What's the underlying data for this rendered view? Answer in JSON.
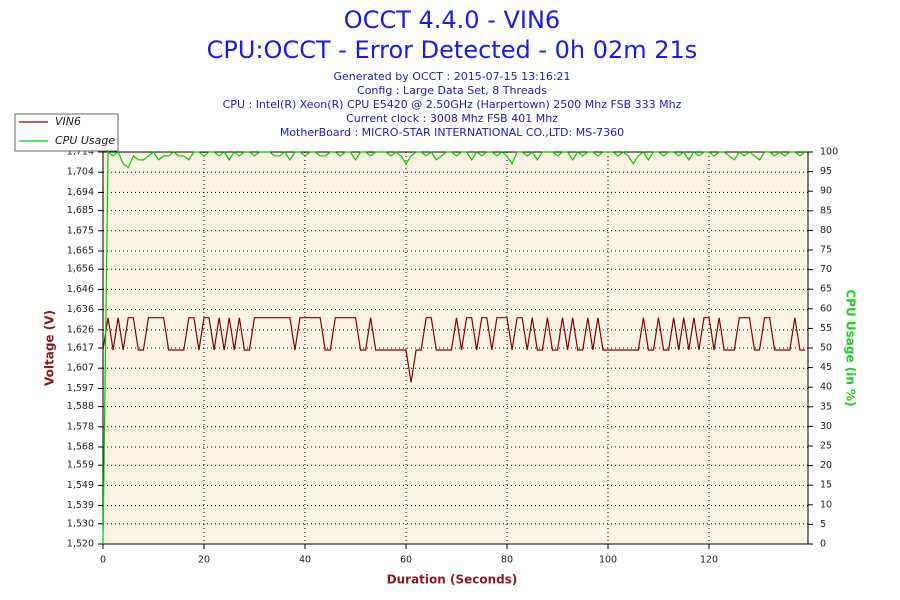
{
  "chart_data": {
    "type": "line",
    "title": "OCCT 4.4.0 - VIN6",
    "subtitle": "CPU:OCCT - Error Detected - 0h 02m 21s",
    "info": [
      "Generated by OCCT : 2015-07-15 13:16:21",
      "Config : Large Data Set, 8 Threads",
      "CPU : Intel(R) Xeon(R) CPU E5420 @ 2.50GHz (Harpertown) 2500 Mhz FSB 333 Mhz",
      "Current clock : 3008 Mhz FSB 401 Mhz",
      "MotherBoard : MICRO-STAR INTERNATIONAL CO.,LTD: MS-7360"
    ],
    "xlabel": "Duration (Seconds)",
    "ylabel": "Voltage (V)",
    "y2label": "CPU Usage (in %)",
    "legend": "upper-left",
    "grid": true,
    "plot_background": "#fbf4e4",
    "xlim": [
      0,
      139.6
    ],
    "xticks": [
      0,
      20,
      40,
      60,
      80,
      100,
      120
    ],
    "ylim": [
      1.52,
      1.714
    ],
    "yticks": [
      {
        "value": 1.52,
        "label": "1,520"
      },
      {
        "value": 1.53,
        "label": "1,530"
      },
      {
        "value": 1.539,
        "label": "1,539"
      },
      {
        "value": 1.549,
        "label": "1,549"
      },
      {
        "value": 1.559,
        "label": "1,559"
      },
      {
        "value": 1.568,
        "label": "1,568"
      },
      {
        "value": 1.578,
        "label": "1,578"
      },
      {
        "value": 1.588,
        "label": "1,588"
      },
      {
        "value": 1.597,
        "label": "1,597"
      },
      {
        "value": 1.607,
        "label": "1,607"
      },
      {
        "value": 1.617,
        "label": "1,617"
      },
      {
        "value": 1.626,
        "label": "1,626"
      },
      {
        "value": 1.636,
        "label": "1,636"
      },
      {
        "value": 1.646,
        "label": "1,646"
      },
      {
        "value": 1.656,
        "label": "1,656"
      },
      {
        "value": 1.665,
        "label": "1,665"
      },
      {
        "value": 1.675,
        "label": "1,675"
      },
      {
        "value": 1.685,
        "label": "1,685"
      },
      {
        "value": 1.694,
        "label": "1,694"
      },
      {
        "value": 1.704,
        "label": "1,704"
      },
      {
        "value": 1.714,
        "label": "1,714"
      }
    ],
    "y2lim": [
      0,
      100
    ],
    "y2ticks": [
      0,
      5,
      10,
      15,
      20,
      25,
      30,
      35,
      40,
      45,
      50,
      55,
      60,
      65,
      70,
      75,
      80,
      85,
      90,
      95,
      100
    ],
    "x": [
      0,
      1,
      2,
      3,
      4,
      5,
      6,
      7,
      8,
      9,
      10,
      11,
      12,
      13,
      14,
      15,
      16,
      17,
      18,
      19,
      20,
      21,
      22,
      23,
      24,
      25,
      26,
      27,
      28,
      29,
      30,
      31,
      32,
      33,
      34,
      35,
      36,
      37,
      38,
      39,
      40,
      41,
      42,
      43,
      44,
      45,
      46,
      47,
      48,
      49,
      50,
      51,
      52,
      53,
      54,
      55,
      56,
      57,
      58,
      59,
      60,
      61,
      62,
      63,
      64,
      65,
      66,
      67,
      68,
      69,
      70,
      71,
      72,
      73,
      74,
      75,
      76,
      77,
      78,
      79,
      80,
      81,
      82,
      83,
      84,
      85,
      86,
      87,
      88,
      89,
      90,
      91,
      92,
      93,
      94,
      95,
      96,
      97,
      98,
      99,
      100,
      101,
      102,
      103,
      104,
      105,
      106,
      107,
      108,
      109,
      110,
      111,
      112,
      113,
      114,
      115,
      116,
      117,
      118,
      119,
      120,
      121,
      122,
      123,
      124,
      125,
      126,
      127,
      128,
      129,
      130,
      131,
      132,
      133,
      134,
      135,
      136,
      137,
      138,
      139
    ],
    "series": [
      {
        "name": "VIN6",
        "color": "#8b0000",
        "values": [
          1.616,
          1.632,
          1.616,
          1.632,
          1.616,
          1.632,
          1.632,
          1.616,
          1.616,
          1.632,
          1.632,
          1.632,
          1.632,
          1.616,
          1.616,
          1.616,
          1.616,
          1.632,
          1.632,
          1.616,
          1.632,
          1.632,
          1.616,
          1.632,
          1.616,
          1.632,
          1.616,
          1.632,
          1.616,
          1.616,
          1.632,
          1.632,
          1.632,
          1.632,
          1.632,
          1.632,
          1.632,
          1.632,
          1.616,
          1.632,
          1.632,
          1.632,
          1.632,
          1.632,
          1.616,
          1.616,
          1.632,
          1.632,
          1.632,
          1.632,
          1.632,
          1.616,
          1.616,
          1.632,
          1.616,
          1.616,
          1.616,
          1.616,
          1.616,
          1.616,
          1.616,
          1.6,
          1.616,
          1.616,
          1.632,
          1.632,
          1.616,
          1.616,
          1.616,
          1.616,
          1.632,
          1.616,
          1.632,
          1.632,
          1.616,
          1.632,
          1.632,
          1.616,
          1.632,
          1.632,
          1.632,
          1.616,
          1.632,
          1.632,
          1.616,
          1.632,
          1.616,
          1.616,
          1.632,
          1.616,
          1.616,
          1.632,
          1.616,
          1.632,
          1.616,
          1.616,
          1.632,
          1.616,
          1.632,
          1.616,
          1.616,
          1.616,
          1.616,
          1.616,
          1.616,
          1.616,
          1.616,
          1.632,
          1.616,
          1.616,
          1.632,
          1.616,
          1.616,
          1.632,
          1.616,
          1.632,
          1.616,
          1.632,
          1.616,
          1.632,
          1.632,
          1.616,
          1.632,
          1.616,
          1.616,
          1.616,
          1.632,
          1.632,
          1.632,
          1.616,
          1.616,
          1.632,
          1.632,
          1.616,
          1.616,
          1.616,
          1.616,
          1.632,
          1.616,
          1.616
        ]
      },
      {
        "name": "CPU Usage",
        "color": "#00cc00",
        "axis": "y2",
        "values": [
          0,
          100,
          99,
          100,
          97,
          96,
          99,
          98,
          98,
          99,
          100,
          98,
          99,
          99,
          100,
          99,
          99,
          98,
          100,
          100,
          99,
          100,
          100,
          99,
          100,
          98,
          100,
          99,
          100,
          100,
          99,
          100,
          100,
          100,
          99,
          99,
          100,
          98,
          100,
          100,
          99,
          100,
          100,
          99,
          99,
          100,
          100,
          99,
          100,
          100,
          98,
          100,
          100,
          99,
          100,
          100,
          100,
          99,
          100,
          99,
          97,
          99,
          100,
          100,
          99,
          100,
          98,
          99,
          100,
          100,
          99,
          100,
          100,
          98,
          100,
          99,
          100,
          100,
          99,
          100,
          99,
          97,
          100,
          100,
          99,
          100,
          98,
          100,
          100,
          100,
          99,
          100,
          100,
          98,
          100,
          99,
          100,
          100,
          99,
          100,
          100,
          100,
          99,
          100,
          99,
          97,
          99,
          100,
          98,
          100,
          100,
          99,
          100,
          100,
          99,
          100,
          98,
          100,
          99,
          100,
          100,
          99,
          100,
          100,
          99,
          98,
          100,
          99,
          100,
          99,
          98,
          100,
          100,
          99,
          100,
          99,
          100,
          100,
          99,
          100
        ]
      }
    ]
  }
}
